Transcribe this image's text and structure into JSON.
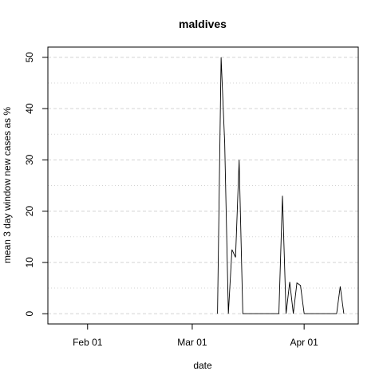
{
  "chart_data": {
    "type": "line",
    "title": "maldives",
    "xlabel": "date",
    "ylabel": "mean  3  day window new cases as %",
    "x_ticks": [
      "2020-02-01",
      "2020-03-01",
      "2020-04-01"
    ],
    "x_tick_labels": [
      "Feb 01",
      "Mar 01",
      "Apr 01"
    ],
    "xlim": [
      "2020-01-21",
      "2020-04-16"
    ],
    "ylim": [
      -2,
      52
    ],
    "y_ticks": [
      0,
      10,
      20,
      30,
      40,
      50
    ],
    "grid": true,
    "colors": {
      "line": "#000000",
      "grid": "#d3d3d3"
    },
    "series": [
      {
        "x": [
          "2020-03-08",
          "2020-03-09",
          "2020-03-10",
          "2020-03-11",
          "2020-03-12",
          "2020-03-13",
          "2020-03-14",
          "2020-03-15",
          "2020-03-16",
          "2020-03-17",
          "2020-03-18",
          "2020-03-19",
          "2020-03-20",
          "2020-03-21",
          "2020-03-22",
          "2020-03-23",
          "2020-03-24",
          "2020-03-25",
          "2020-03-26",
          "2020-03-27",
          "2020-03-28",
          "2020-03-29",
          "2020-03-30",
          "2020-03-31",
          "2020-04-01",
          "2020-04-02",
          "2020-04-03",
          "2020-04-04",
          "2020-04-05",
          "2020-04-06",
          "2020-04-07",
          "2020-04-08",
          "2020-04-09",
          "2020-04-10",
          "2020-04-11",
          "2020-04-12"
        ],
        "values": [
          0,
          50,
          33.3,
          0,
          12.5,
          11,
          30,
          0,
          0,
          0,
          0,
          0,
          0,
          0,
          0,
          0,
          0,
          0,
          23,
          0,
          6.2,
          0,
          6,
          5.5,
          0,
          0,
          0,
          0,
          0,
          0,
          0,
          0,
          0,
          0,
          5.3,
          0
        ]
      }
    ]
  }
}
